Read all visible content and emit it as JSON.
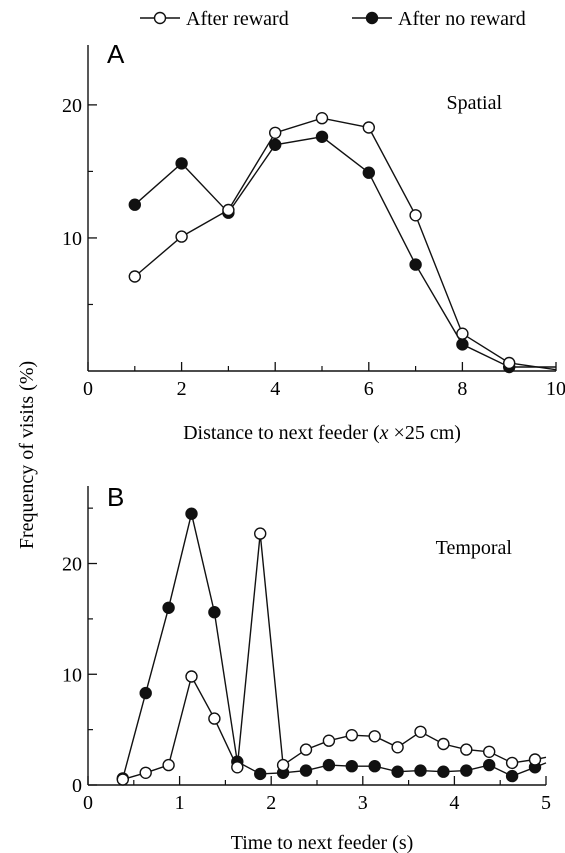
{
  "legend": {
    "items": [
      {
        "label": "After reward",
        "marker": "open-circle"
      },
      {
        "label": "After no reward",
        "marker": "filled-circle"
      }
    ],
    "placement": "top-center"
  },
  "shared": {
    "ylabel": "Frequency of visits (%)"
  },
  "colors": {
    "line": "#111111",
    "open_fill": "#ffffff",
    "filled_fill": "#111111"
  },
  "chart_data": [
    {
      "type": "line",
      "panel_letter": "A",
      "annotation": "Spatial",
      "xlabel_parts": [
        "Distance to next feeder (",
        "x",
        " ×25 cm)"
      ],
      "ylabel": "Frequency of visits (%)",
      "xlim": [
        0,
        10
      ],
      "ylim": [
        0,
        24.5
      ],
      "xticks": [
        0,
        2,
        4,
        6,
        8,
        10
      ],
      "xticks_minor": [
        1,
        3,
        5,
        7,
        9
      ],
      "yticks": [
        10,
        20
      ],
      "yticks_minor": [
        5,
        15
      ],
      "grid": false,
      "series": [
        {
          "name": "After reward",
          "marker": "open",
          "points": [
            [
              1,
              7.1
            ],
            [
              2,
              10.1
            ],
            [
              3,
              12.1
            ],
            [
              4,
              17.9
            ],
            [
              5,
              19.0
            ],
            [
              6,
              18.3
            ],
            [
              7,
              11.7
            ],
            [
              8,
              2.8
            ],
            [
              9,
              0.6
            ],
            [
              10,
              0.1
            ]
          ]
        },
        {
          "name": "After no reward",
          "marker": "filled",
          "points": [
            [
              1,
              12.5
            ],
            [
              2,
              15.6
            ],
            [
              3,
              11.9
            ],
            [
              4,
              17.0
            ],
            [
              5,
              17.6
            ],
            [
              6,
              14.9
            ],
            [
              7,
              8.0
            ],
            [
              8,
              2.0
            ],
            [
              9,
              0.3
            ],
            [
              10,
              0.3
            ]
          ]
        }
      ]
    },
    {
      "type": "line",
      "panel_letter": "B",
      "annotation": "Temporal",
      "xlabel_parts": [
        "Time to next feeder (s)"
      ],
      "ylabel": "Frequency of visits (%)",
      "xlim": [
        0,
        5
      ],
      "ylim": [
        0,
        27
      ],
      "xticks": [
        0,
        1,
        2,
        3,
        4,
        5
      ],
      "xticks_minor": [
        0.5,
        1.5,
        2.5,
        3.5,
        4.5
      ],
      "yticks": [
        0,
        10,
        20
      ],
      "yticks_minor": [
        5,
        15,
        25
      ],
      "grid": false,
      "series": [
        {
          "name": "After reward",
          "marker": "open",
          "points": [
            [
              0.38,
              0.5
            ],
            [
              0.63,
              1.1
            ],
            [
              0.88,
              1.8
            ],
            [
              1.13,
              9.8
            ],
            [
              1.38,
              6.0
            ],
            [
              1.63,
              1.6
            ],
            [
              1.88,
              22.7
            ],
            [
              2.13,
              1.8
            ],
            [
              2.38,
              3.2
            ],
            [
              2.63,
              4.0
            ],
            [
              2.88,
              4.5
            ],
            [
              3.13,
              4.4
            ],
            [
              3.38,
              3.4
            ],
            [
              3.63,
              4.8
            ],
            [
              3.88,
              3.7
            ],
            [
              4.13,
              3.2
            ],
            [
              4.38,
              3.0
            ],
            [
              4.63,
              2.0
            ],
            [
              4.88,
              2.3
            ],
            [
              5.0,
              2.5
            ]
          ]
        },
        {
          "name": "After no reward",
          "marker": "filled",
          "points": [
            [
              0.38,
              0.6
            ],
            [
              0.63,
              8.3
            ],
            [
              0.88,
              16.0
            ],
            [
              1.13,
              24.5
            ],
            [
              1.38,
              15.6
            ],
            [
              1.63,
              2.1
            ],
            [
              1.88,
              1.0
            ],
            [
              2.13,
              1.1
            ],
            [
              2.38,
              1.3
            ],
            [
              2.63,
              1.8
            ],
            [
              2.88,
              1.7
            ],
            [
              3.13,
              1.7
            ],
            [
              3.38,
              1.2
            ],
            [
              3.63,
              1.3
            ],
            [
              3.88,
              1.2
            ],
            [
              4.13,
              1.3
            ],
            [
              4.38,
              1.8
            ],
            [
              4.63,
              0.8
            ],
            [
              4.88,
              1.6
            ],
            [
              5.0,
              2.0
            ]
          ]
        }
      ]
    }
  ]
}
